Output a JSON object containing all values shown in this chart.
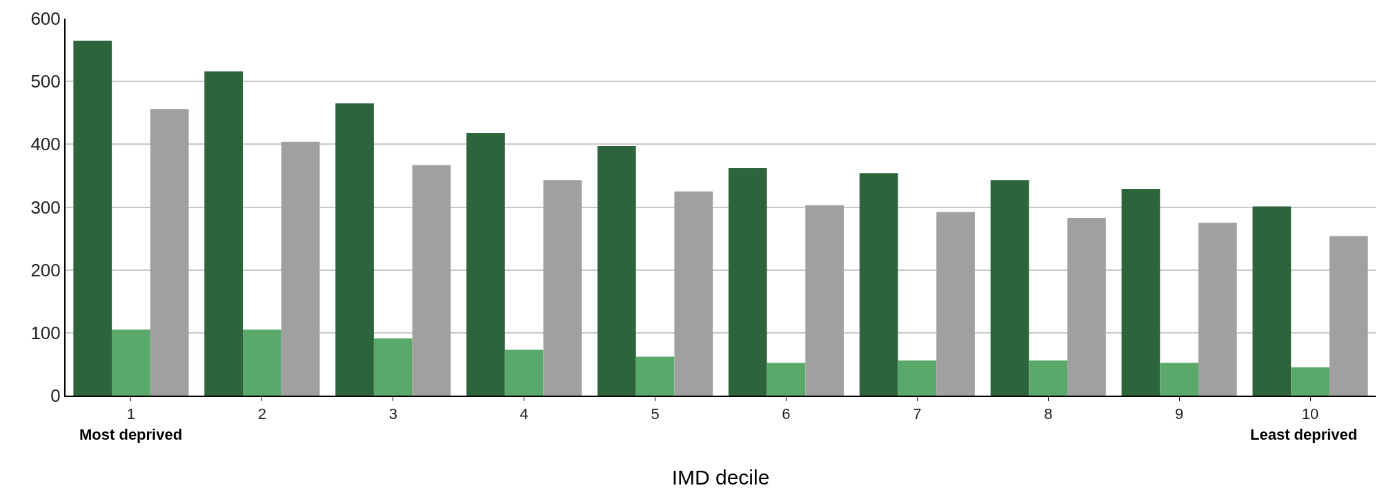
{
  "chart_data": {
    "type": "bar",
    "xlabel": "IMD decile",
    "categories": [
      "1",
      "2",
      "3",
      "4",
      "5",
      "6",
      "7",
      "8",
      "9",
      "10"
    ],
    "series": [
      {
        "color": "#2d643b",
        "values": [
          565,
          516,
          465,
          418,
          397,
          362,
          354,
          343,
          329,
          301
        ]
      },
      {
        "color": "#5aa96a",
        "values": [
          105,
          105,
          91,
          73,
          62,
          52,
          56,
          56,
          52,
          45
        ]
      },
      {
        "color": "#a0a0a0",
        "values": [
          456,
          404,
          367,
          343,
          325,
          303,
          292,
          283,
          275,
          254
        ]
      }
    ],
    "ylim": [
      0,
      600
    ],
    "yticks": [
      0,
      100,
      200,
      300,
      400,
      500,
      600
    ],
    "grid": "y",
    "annotations": [
      "Most deprived",
      "Least deprived"
    ]
  }
}
